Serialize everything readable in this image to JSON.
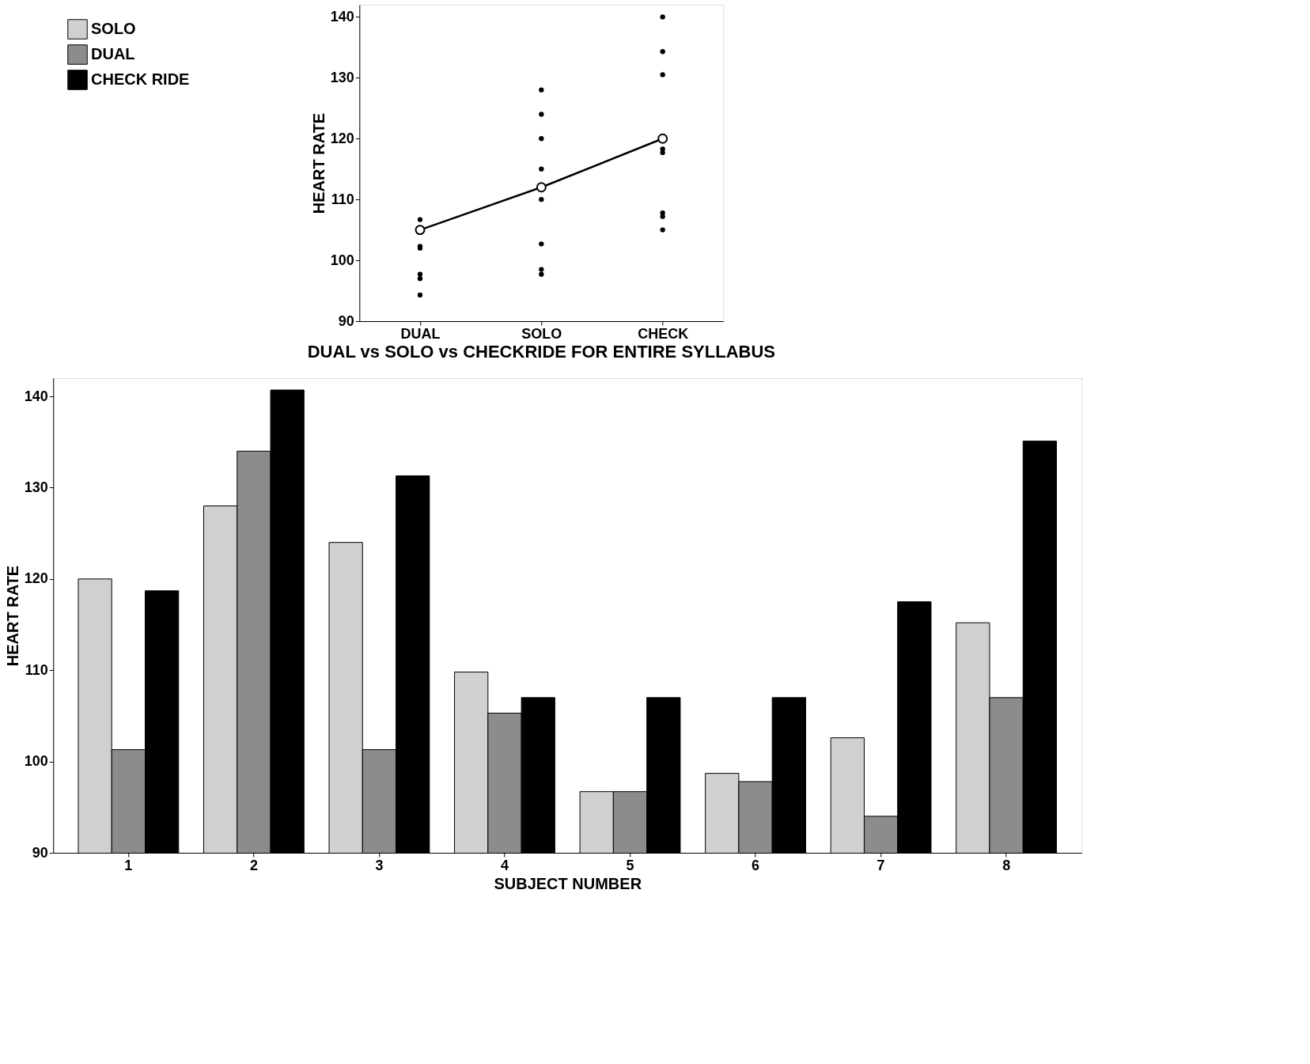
{
  "chart_data": [
    {
      "type": "bar",
      "xlabel": "SUBJECT NUMBER",
      "ylabel": "HEART RATE",
      "categories": [
        "1",
        "2",
        "3",
        "4",
        "5",
        "6",
        "7",
        "8"
      ],
      "ylim": [
        90,
        142
      ],
      "yticks": [
        90,
        100,
        110,
        120,
        130,
        140
      ],
      "legend": "top left",
      "series": [
        {
          "name": "SOLO",
          "color": "#d0d0d0",
          "values": [
            120,
            128,
            124,
            109.8,
            96.7,
            98.7,
            102.6,
            115.2
          ]
        },
        {
          "name": "DUAL",
          "color": "#8c8c8c",
          "values": [
            101.3,
            134,
            101.3,
            105.3,
            96.7,
            97.8,
            94,
            107
          ]
        },
        {
          "name": "CHECK RIDE",
          "color": "#000000",
          "values": [
            118.7,
            140.7,
            131.3,
            107,
            107,
            107,
            117.5,
            135.1
          ]
        }
      ]
    },
    {
      "type": "scatter",
      "title": "DUAL vs SOLO vs CHECKRIDE FOR ENTIRE SYLLABUS",
      "ylabel": "HEART RATE",
      "categories": [
        "DUAL",
        "SOLO",
        "CHECK"
      ],
      "ylim": [
        90,
        142
      ],
      "yticks": [
        90,
        100,
        110,
        120,
        130,
        140
      ],
      "series": [
        {
          "type": "scatter",
          "color": "#000000",
          "marker": "circle",
          "x": [
            "DUAL",
            "DUAL",
            "DUAL",
            "DUAL",
            "DUAL",
            "DUAL",
            "DUAL",
            "SOLO",
            "SOLO",
            "SOLO",
            "SOLO",
            "SOLO",
            "SOLO",
            "SOLO",
            "SOLO",
            "CHECK",
            "CHECK",
            "CHECK",
            "CHECK",
            "CHECK",
            "CHECK",
            "CHECK",
            "CHECK"
          ],
          "values": [
            106.7,
            105,
            102.3,
            102,
            97.7,
            97,
            94.3,
            128,
            124,
            120,
            115,
            110,
            102.7,
            98.5,
            97.7,
            140,
            134.3,
            130.5,
            118.3,
            117.7,
            107.8,
            107.2,
            105
          ]
        },
        {
          "type": "line",
          "color": "#000000",
          "marker": "circle",
          "x": [
            "DUAL",
            "SOLO",
            "CHECK"
          ],
          "values": [
            105,
            112,
            120
          ]
        }
      ]
    }
  ]
}
